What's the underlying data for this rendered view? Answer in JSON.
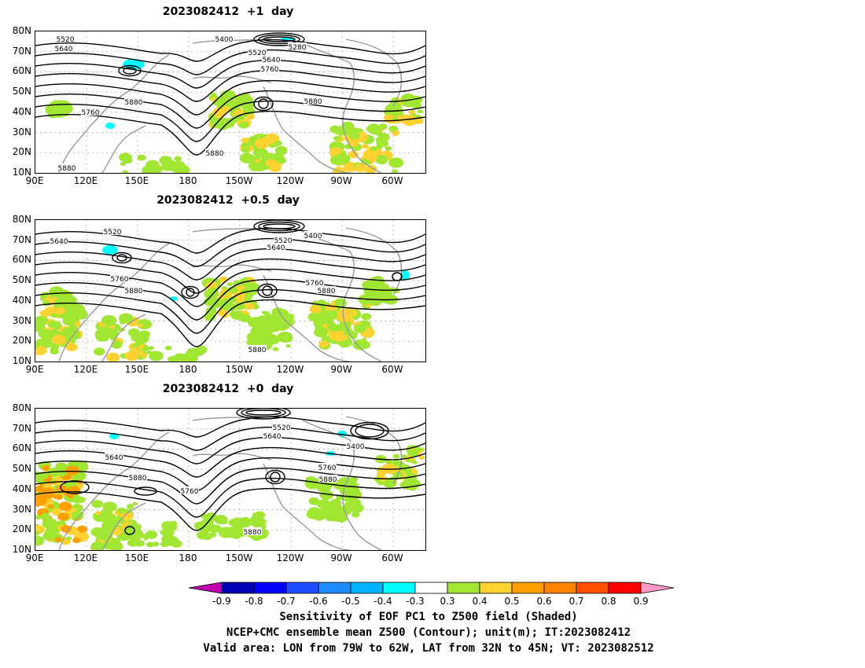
{
  "panels": [
    {
      "title": "2023082412  +1  day",
      "contour_labels": [
        "5520",
        "5640",
        "5400",
        "5280",
        "5520",
        "5640",
        "5760",
        "5880",
        "5760",
        "5880",
        "5880",
        "5880"
      ]
    },
    {
      "title": "2023082412  +0.5  day",
      "contour_labels": [
        "5520",
        "5640",
        "5520",
        "5400",
        "5640",
        "5760",
        "5880",
        "5760",
        "5880",
        "5880"
      ]
    },
    {
      "title": "2023082412  +0  day",
      "contour_labels": [
        "5520",
        "5640",
        "5400",
        "5640",
        "5880",
        "5760",
        "5760",
        "5880",
        "5880"
      ]
    }
  ],
  "lat_ticks": [
    "80N",
    "70N",
    "60N",
    "50N",
    "40N",
    "30N",
    "20N",
    "10N"
  ],
  "lon_ticks": [
    "90E",
    "120E",
    "150E",
    "180",
    "150W",
    "120W",
    "90W",
    "60W"
  ],
  "colorbar": {
    "ticks": [
      "-0.9",
      "-0.8",
      "-0.7",
      "-0.6",
      "-0.5",
      "-0.4",
      "-0.3",
      "0.3",
      "0.4",
      "0.5",
      "0.6",
      "0.7",
      "0.8",
      "0.9"
    ],
    "colors": [
      "#c000b0",
      "#0000b4",
      "#0000ff",
      "#1e4cff",
      "#1e8cff",
      "#00b4ff",
      "#00ffff",
      "#ffffff",
      "#a0e632",
      "#ffd232",
      "#ffa000",
      "#ff8200",
      "#ff5000",
      "#ff0000",
      "#ff9ac8"
    ]
  },
  "captions": [
    "Sensitivity of EOF PC1 to Z500 field (Shaded)",
    "NCEP+CMC ensemble mean Z500 (Contour); unit(m); IT:2023082412",
    "Valid area: LON from 79W to 62W, LAT from 32N to 45N; VT: 2023082512"
  ]
}
